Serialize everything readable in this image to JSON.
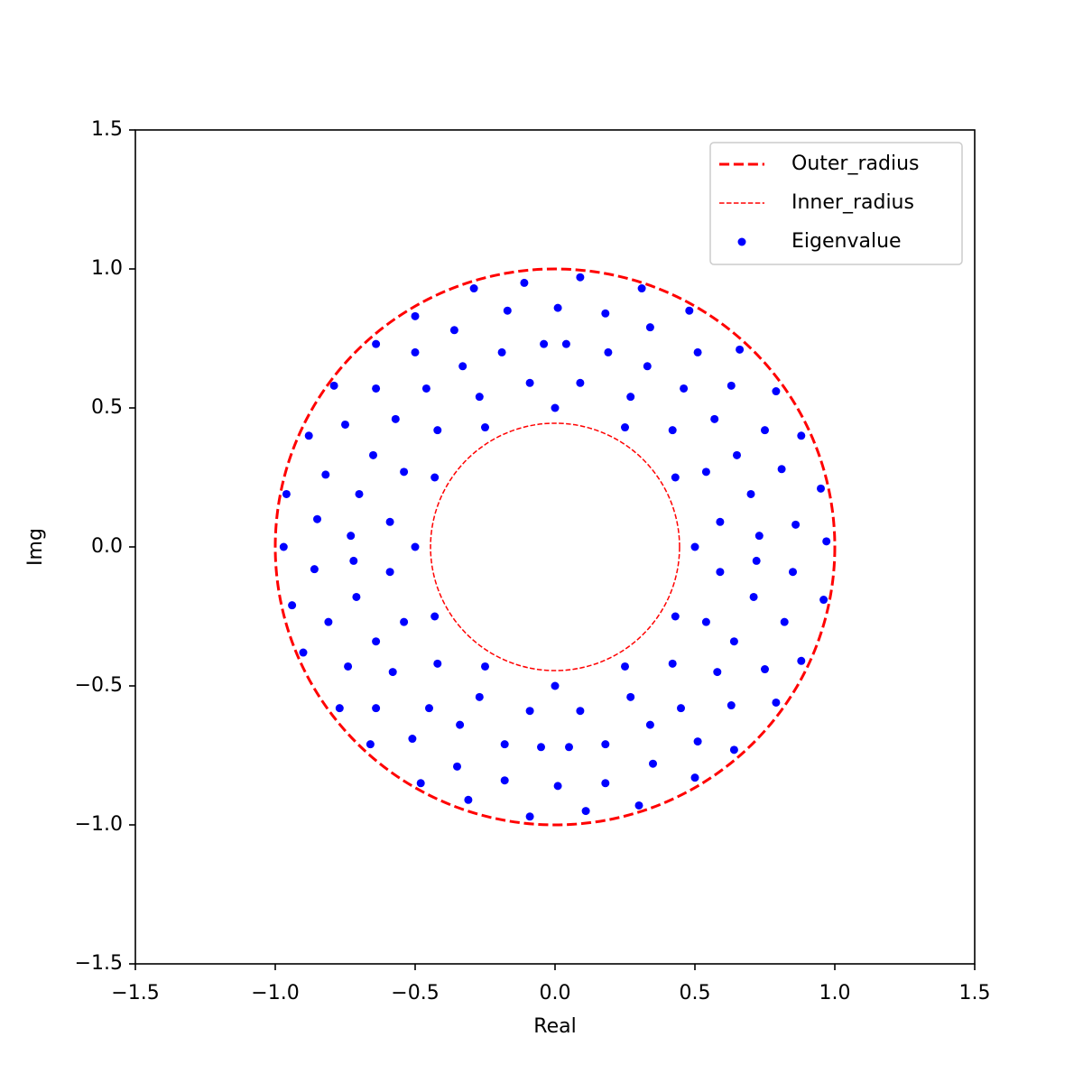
{
  "chart_data": {
    "type": "scatter",
    "xlabel": "Real",
    "ylabel": "Img",
    "xlim": [
      -1.5,
      1.5
    ],
    "ylim": [
      -1.5,
      1.5
    ],
    "xticks": [
      {
        "value": -1.5,
        "label": "−1.5"
      },
      {
        "value": -1.0,
        "label": "−1.0"
      },
      {
        "value": -0.5,
        "label": "−0.5"
      },
      {
        "value": 0,
        "label": "0.0"
      },
      0.5,
      {
        "value": 1.0,
        "label": "1.0"
      },
      1.5
    ],
    "yticks": [
      {
        "value": -1.5,
        "label": "−1.5"
      },
      {
        "value": -1.0,
        "label": "−1.0"
      },
      {
        "value": -0.5,
        "label": "−0.5"
      },
      {
        "value": 0,
        "label": "0.0"
      },
      0.5,
      {
        "value": 1.0,
        "label": "1.0"
      },
      1.5
    ],
    "legend": "upper right",
    "circles": [
      {
        "name": "Outer_radius",
        "color": "#ff0000",
        "radius": 1.0,
        "linewidth": 3
      },
      {
        "name": "Inner_radius",
        "color": "#ff0000",
        "radius": 0.445,
        "linewidth": 1.5
      }
    ],
    "series": [
      {
        "name": "Eigenvalue",
        "color": "#0000ff",
        "x": [
          0.97,
          0.95,
          0.88,
          0.79,
          0.66,
          0.48,
          0.31,
          0.09,
          -0.11,
          -0.29,
          -0.5,
          -0.64,
          -0.79,
          -0.88,
          -0.96,
          -0.97,
          -0.94,
          -0.9,
          -0.77,
          -0.66,
          -0.48,
          -0.31,
          -0.09,
          0.11,
          0.3,
          0.5,
          0.64,
          0.79,
          0.88,
          0.96,
          0.86,
          0.81,
          0.75,
          0.63,
          0.51,
          0.34,
          0.18,
          0.01,
          -0.17,
          -0.36,
          -0.5,
          -0.64,
          -0.75,
          -0.82,
          -0.85,
          -0.86,
          -0.81,
          -0.74,
          -0.64,
          -0.51,
          -0.35,
          -0.18,
          0.01,
          0.18,
          0.35,
          0.51,
          0.63,
          0.75,
          0.82,
          0.85,
          0.73,
          0.7,
          0.65,
          0.57,
          0.46,
          0.33,
          0.19,
          0.04,
          -0.73,
          -0.7,
          -0.65,
          -0.57,
          -0.46,
          -0.33,
          -0.19,
          -0.04,
          0.72,
          0.71,
          0.64,
          0.58,
          0.45,
          0.34,
          0.18,
          0.05,
          -0.72,
          -0.71,
          -0.64,
          -0.58,
          -0.45,
          -0.34,
          -0.18,
          -0.05,
          0.59,
          0.54,
          0.42,
          0.27,
          0.09,
          -0.59,
          -0.54,
          -0.42,
          -0.27,
          -0.09,
          0.59,
          0.54,
          0.42,
          0.27,
          0.09,
          -0.59,
          -0.54,
          -0.42,
          -0.27,
          -0.09,
          0.5,
          0.43,
          0.25,
          0,
          -0.25,
          -0.43,
          -0.5,
          -0.43,
          -0.25,
          0,
          0.25,
          0.43
        ],
        "y": [
          0.02,
          0.21,
          0.4,
          0.56,
          0.71,
          0.85,
          0.93,
          0.97,
          0.95,
          0.93,
          0.83,
          0.73,
          0.58,
          0.4,
          0.19,
          0,
          -0.21,
          -0.38,
          -0.58,
          -0.71,
          -0.85,
          -0.91,
          -0.97,
          -0.95,
          -0.93,
          -0.83,
          -0.73,
          -0.56,
          -0.41,
          -0.19,
          0.08,
          0.28,
          0.42,
          0.58,
          0.7,
          0.79,
          0.84,
          0.86,
          0.85,
          0.78,
          0.7,
          0.57,
          0.44,
          0.26,
          0.1,
          -0.08,
          -0.27,
          -0.43,
          -0.58,
          -0.69,
          -0.79,
          -0.84,
          -0.86,
          -0.85,
          -0.78,
          -0.7,
          -0.57,
          -0.44,
          -0.27,
          -0.09,
          0.04,
          0.19,
          0.33,
          0.46,
          0.57,
          0.65,
          0.7,
          0.73,
          0.04,
          0.19,
          0.33,
          0.46,
          0.57,
          0.65,
          0.7,
          0.73,
          -0.05,
          -0.18,
          -0.34,
          -0.45,
          -0.58,
          -0.64,
          -0.71,
          -0.72,
          -0.05,
          -0.18,
          -0.34,
          -0.45,
          -0.58,
          -0.64,
          -0.71,
          -0.72,
          0.09,
          0.27,
          0.42,
          0.54,
          0.59,
          0.09,
          0.27,
          0.42,
          0.54,
          0.59,
          -0.09,
          -0.27,
          -0.42,
          -0.54,
          -0.59,
          -0.09,
          -0.27,
          -0.42,
          -0.54,
          -0.59,
          0,
          0.25,
          0.43,
          0.5,
          0.43,
          0.25,
          0,
          -0.25,
          -0.43,
          -0.5,
          -0.43,
          -0.25
        ]
      }
    ]
  }
}
